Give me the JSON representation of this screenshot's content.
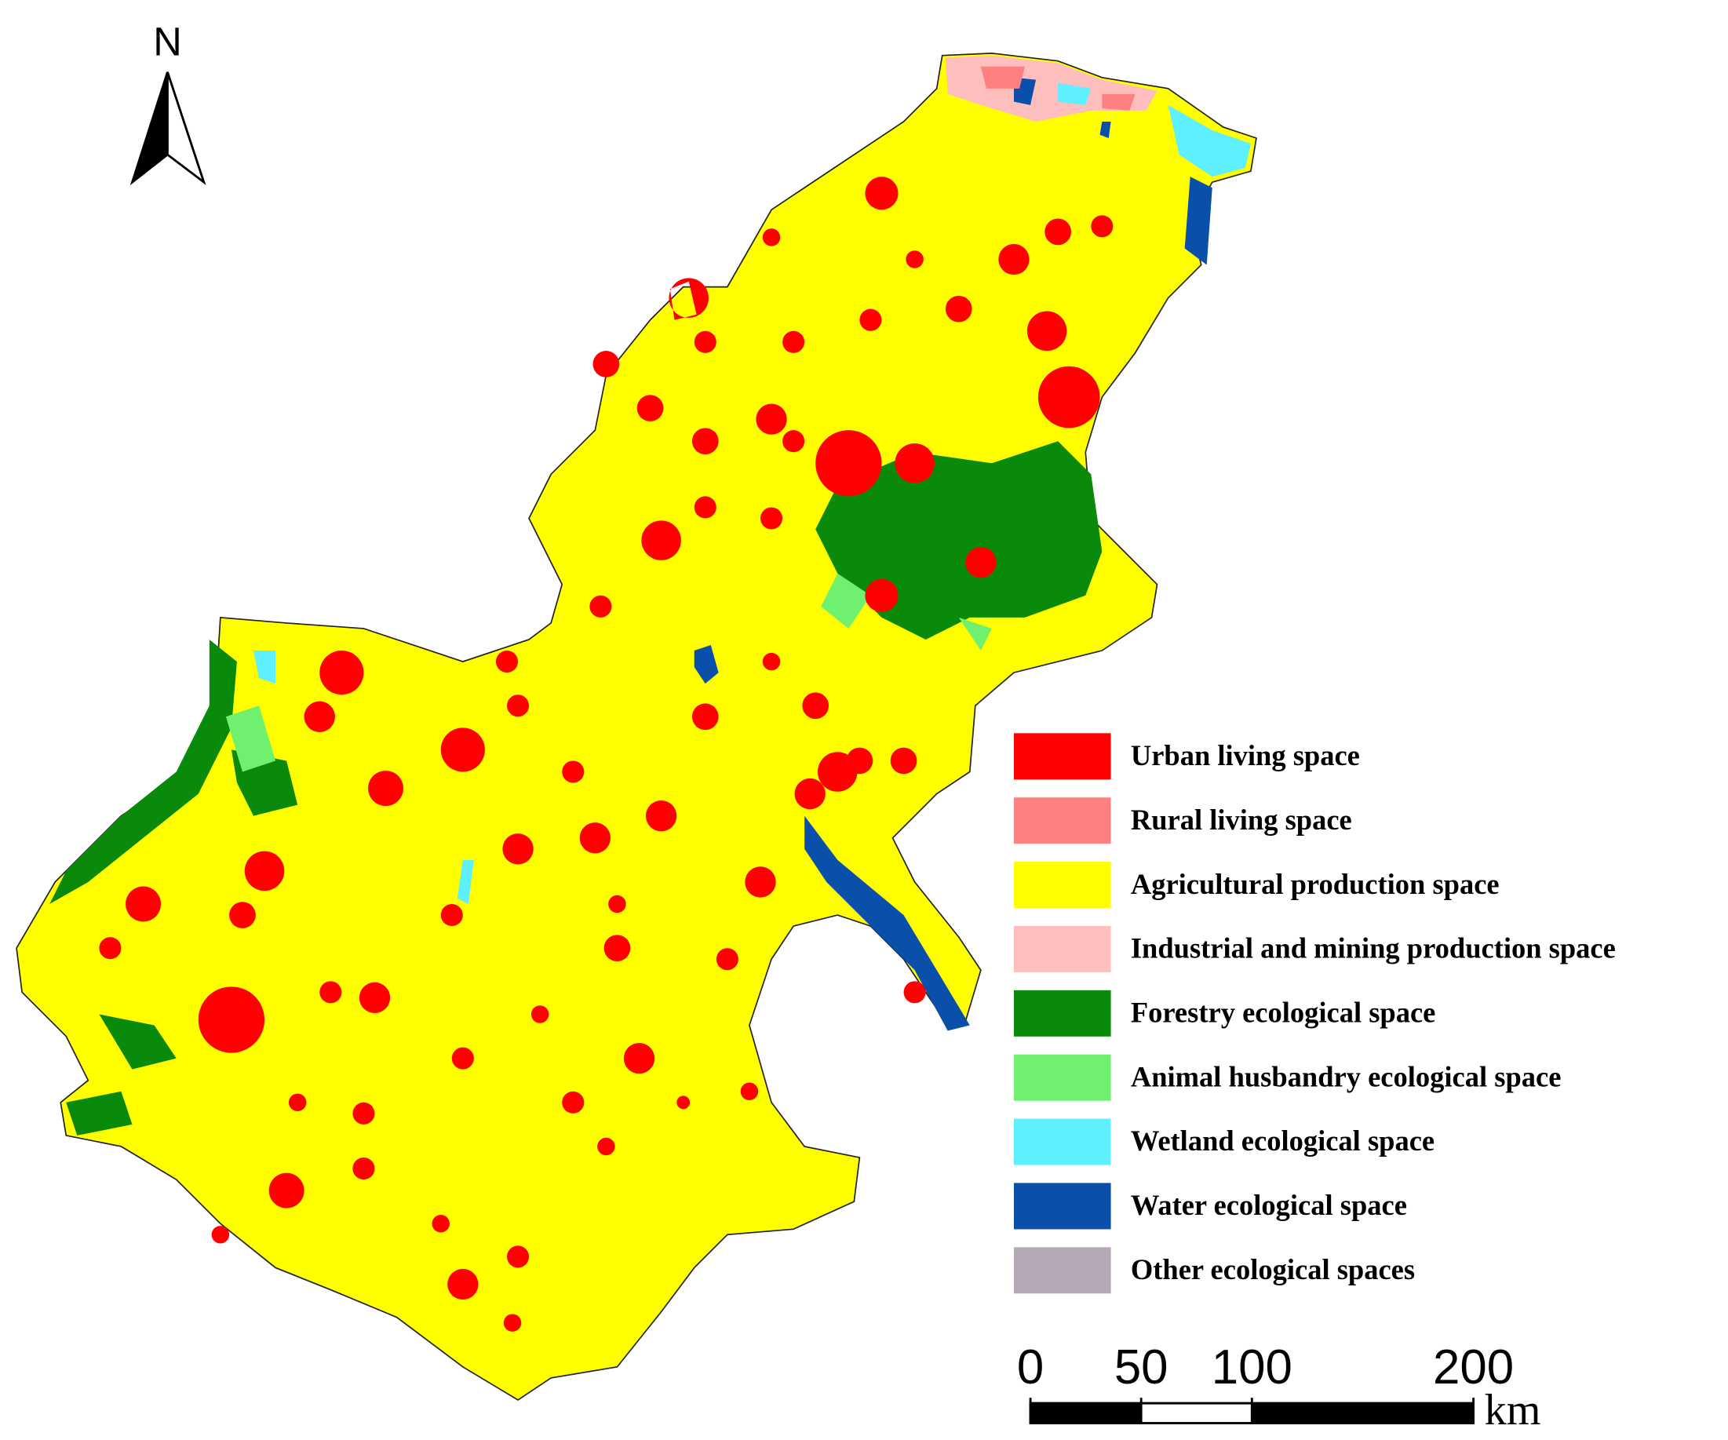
{
  "north_label": "N",
  "legend": [
    {
      "label": "Urban living space",
      "color": "#ff0000"
    },
    {
      "label": "Rural living space",
      "color": "#ff8080"
    },
    {
      "label": "Agricultural production space",
      "color": "#ffff00"
    },
    {
      "label": "Industrial and mining production space",
      "color": "#ffbebe"
    },
    {
      "label": "Forestry ecological space",
      "color": "#0a8a0a"
    },
    {
      "label": "Animal husbandry ecological space",
      "color": "#6ff06f"
    },
    {
      "label": "Wetland ecological space",
      "color": "#5ff0ff"
    },
    {
      "label": "Water ecological space",
      "color": "#0a4faa"
    },
    {
      "label": "Other ecological spaces",
      "color": "#b4a9b4"
    }
  ],
  "scale": {
    "ticks": [
      0,
      50,
      100,
      200
    ],
    "unit": "km"
  }
}
